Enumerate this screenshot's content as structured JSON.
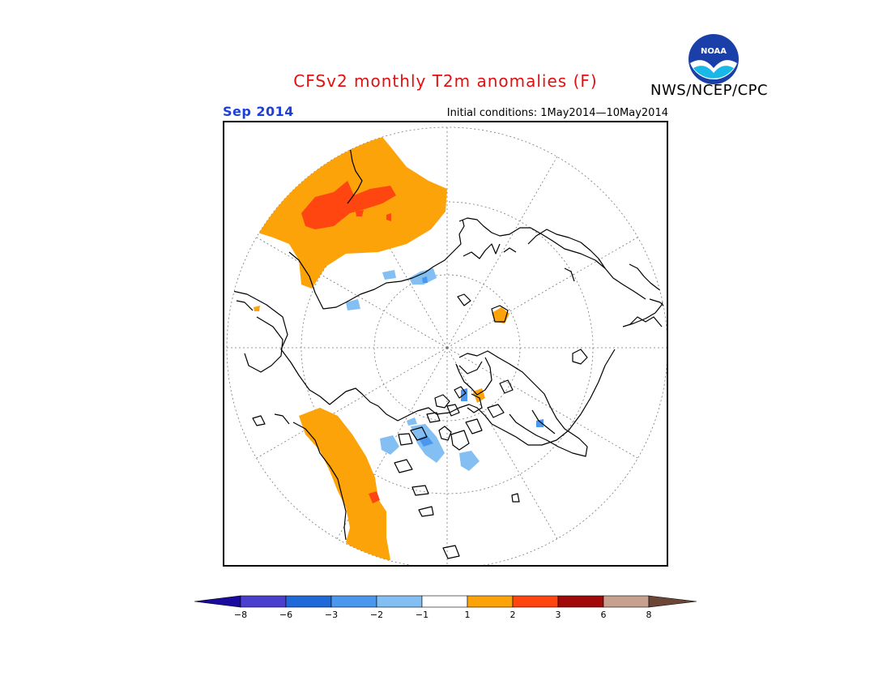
{
  "header": {
    "title": "CFSv2 monthly T2m anomalies (F)",
    "agency": "NWS/NCEP/CPC",
    "month": "Sep 2014",
    "initial_conditions": "Initial conditions: 1May2014—10May2014",
    "logo_text": "NOAA"
  },
  "colorbar": {
    "labels": [
      "−8",
      "−6",
      "−3",
      "−2",
      "−1",
      "1",
      "2",
      "3",
      "6",
      "8"
    ],
    "colors": {
      "lt_neg8": "#1a0aa0",
      "neg8_neg6": "#4b3fd0",
      "neg6_neg3": "#1f6ad8",
      "neg3_neg2": "#4c97ee",
      "neg2_neg1": "#84bff4",
      "neg1_1": "#ffffff",
      "1_2": "#fca30a",
      "2_3": "#ff4510",
      "3_6": "#a00a0a",
      "6_8": "#c8a08e",
      "gt_8": "#6b4535"
    }
  },
  "map": {
    "projection": "north-polar-stereographic",
    "anomaly_colors": {
      "warm_1_2": "#fca30a",
      "warm_2_3": "#ff4510",
      "cool_neg2_neg1": "#84bff4",
      "cool_neg3_neg2": "#4c97ee"
    }
  }
}
